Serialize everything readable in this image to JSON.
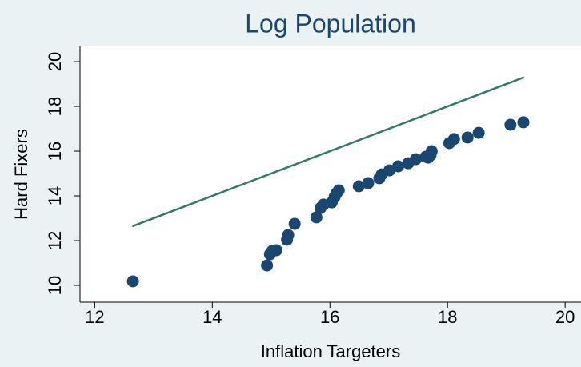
{
  "chart_data": {
    "type": "scatter",
    "title": "Log Population",
    "x_label": "Inflation Targeters",
    "y_label": "Hard Fixers",
    "xlim": [
      11.75,
      20.27
    ],
    "ylim": [
      9.25,
      20.68
    ],
    "xticks": [
      12,
      14,
      16,
      18,
      20
    ],
    "yticks": [
      10,
      12,
      14,
      16,
      18,
      20
    ],
    "background": "#eaf2f3",
    "plot_background": "#ffffff",
    "series": [
      {
        "kind": "markers",
        "color": "#1a476f",
        "x": [
          12.65,
          14.93,
          14.98,
          15.02,
          15.09,
          15.27,
          15.29,
          15.4,
          15.77,
          15.84,
          15.89,
          16.03,
          16.08,
          16.11,
          16.15,
          16.49,
          16.65,
          16.84,
          16.88,
          17.01,
          17.16,
          17.33,
          17.46,
          17.63,
          17.67,
          17.71,
          17.73,
          18.03,
          18.11,
          18.34,
          18.53,
          19.07,
          19.29
        ],
        "values": [
          10.18,
          10.89,
          11.39,
          11.54,
          11.57,
          12.04,
          12.25,
          12.75,
          13.04,
          13.46,
          13.61,
          13.71,
          13.96,
          14.11,
          14.25,
          14.43,
          14.57,
          14.79,
          14.96,
          15.14,
          15.32,
          15.46,
          15.64,
          15.75,
          15.71,
          15.82,
          16.0,
          16.36,
          16.54,
          16.61,
          16.82,
          17.18,
          17.29
        ]
      },
      {
        "kind": "line",
        "color": "#2e7a68",
        "x": [
          12.64,
          19.3
        ],
        "values": [
          12.64,
          19.3
        ]
      }
    ]
  }
}
